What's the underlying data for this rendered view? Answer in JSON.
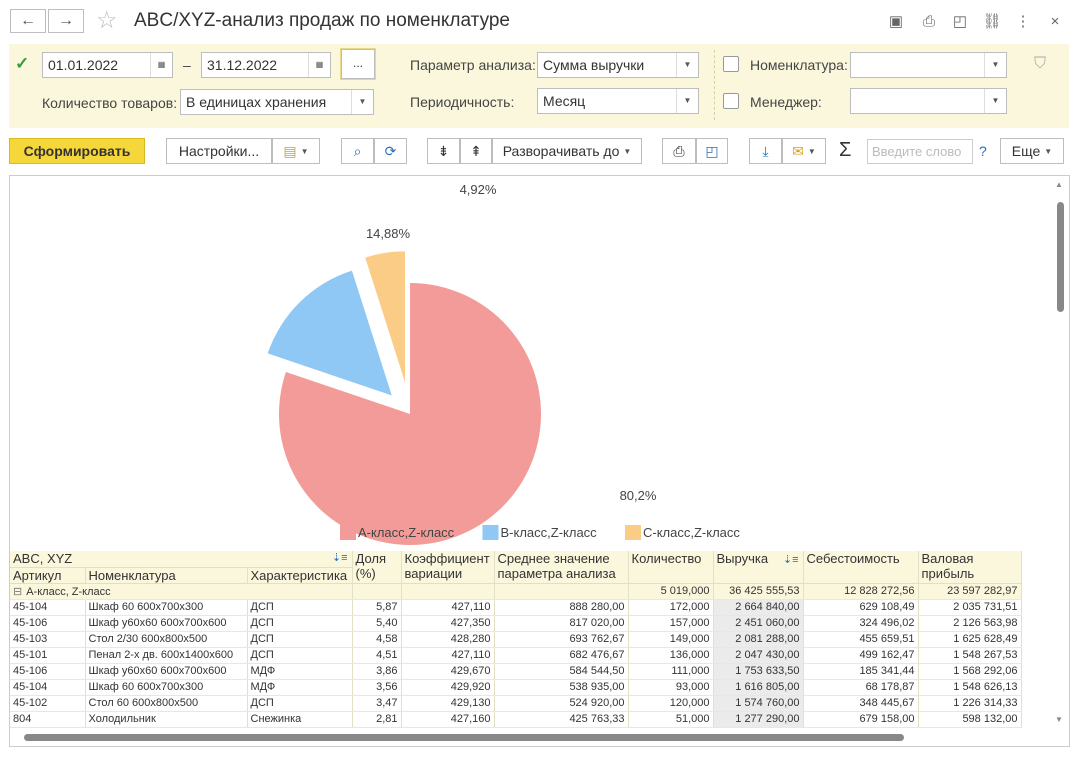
{
  "window": {
    "title": "ABC/XYZ-анализ продаж по номенклатуре"
  },
  "filters": {
    "date_from": "01.01.2022",
    "date_dash": "–",
    "date_to": "31.12.2022",
    "dots_label": "...",
    "qty_label": "Количество товаров:",
    "qty_value": "В единицах хранения",
    "param_label": "Параметр анализа:",
    "param_value": "Сумма выручки",
    "period_label": "Периодичность:",
    "period_value": "Месяц",
    "nomenclature_label": "Номенклатура:",
    "nomenclature_value": "",
    "manager_label": "Менеджер:",
    "manager_value": ""
  },
  "toolbar": {
    "generate_label": "Сформировать",
    "settings_label": "Настройки...",
    "expand_label": "Разворачивать до",
    "search_placeholder": "Введите слово",
    "help_label": "?",
    "more_label": "Еще"
  },
  "chart_data": {
    "type": "pie",
    "slices": [
      {
        "name": "A-класс,Z-класс",
        "value": 80.2,
        "label": "80,2%",
        "color": "#f29b98"
      },
      {
        "name": "B-класс,Z-класс",
        "value": 14.88,
        "label": "14,88%",
        "color": "#8fc8f5"
      },
      {
        "name": "C-класс,Z-класс",
        "value": 4.92,
        "label": "4,92%",
        "color": "#fbcc86"
      }
    ],
    "legend_position": "bottom"
  },
  "table": {
    "headers": {
      "abc_xyz": "ABC, XYZ",
      "article": "Артикул",
      "nomenclature": "Номенклатура",
      "characteristic": "Характеристика",
      "share": "Доля (%)",
      "coef": "Коэффициент вариации",
      "avg": "Среднее значение параметра анализа",
      "qty": "Количество",
      "revenue": "Выручка",
      "cost": "Себестоимость",
      "profit": "Валовая прибыль"
    },
    "group": {
      "toggle": "⊟",
      "name": "A-класс, Z-класс",
      "qty": "5 019,000",
      "revenue": "36 425 555,53",
      "cost": "12 828 272,56",
      "profit": "23 597 282,97"
    },
    "rows": [
      {
        "article": "45-104",
        "name": "Шкаф 60 600x700x300",
        "char": "ДСП",
        "share": "5,87",
        "coef": "427,110",
        "avg": "888 280,00",
        "qty": "172,000",
        "revenue": "2 664 840,00",
        "cost": "629 108,49",
        "profit": "2 035 731,51"
      },
      {
        "article": "45-106",
        "name": "Шкаф у60х60 600x700x600",
        "char": "ДСП",
        "share": "5,40",
        "coef": "427,350",
        "avg": "817 020,00",
        "qty": "157,000",
        "revenue": "2 451 060,00",
        "cost": "324 496,02",
        "profit": "2 126 563,98"
      },
      {
        "article": "45-103",
        "name": "Стол 2/30 600x800x500",
        "char": "ДСП",
        "share": "4,58",
        "coef": "428,280",
        "avg": "693 762,67",
        "qty": "149,000",
        "revenue": "2 081 288,00",
        "cost": "455 659,51",
        "profit": "1 625 628,49"
      },
      {
        "article": "45-101",
        "name": "Пенал 2-х дв. 600x1400x600",
        "char": "ДСП",
        "share": "4,51",
        "coef": "427,110",
        "avg": "682 476,67",
        "qty": "136,000",
        "revenue": "2 047 430,00",
        "cost": "499 162,47",
        "profit": "1 548 267,53"
      },
      {
        "article": "45-106",
        "name": "Шкаф у60х60 600x700x600",
        "char": "МДФ",
        "share": "3,86",
        "coef": "429,670",
        "avg": "584 544,50",
        "qty": "111,000",
        "revenue": "1 753 633,50",
        "cost": "185 341,44",
        "profit": "1 568 292,06"
      },
      {
        "article": "45-104",
        "name": "Шкаф 60 600x700x300",
        "char": "МДФ",
        "share": "3,56",
        "coef": "429,920",
        "avg": "538 935,00",
        "qty": "93,000",
        "revenue": "1 616 805,00",
        "cost": "68 178,87",
        "profit": "1 548 626,13"
      },
      {
        "article": "45-102",
        "name": "Стол 60 600x800x500",
        "char": "ДСП",
        "share": "3,47",
        "coef": "429,130",
        "avg": "524 920,00",
        "qty": "120,000",
        "revenue": "1 574 760,00",
        "cost": "348 445,67",
        "profit": "1 226 314,33"
      },
      {
        "article": "804",
        "name": "Холодильник",
        "char": "Снежинка",
        "share": "2,81",
        "coef": "427,160",
        "avg": "425 763,33",
        "qty": "51,000",
        "revenue": "1 277 290,00",
        "cost": "679 158,00",
        "profit": "598 132,00"
      }
    ]
  }
}
